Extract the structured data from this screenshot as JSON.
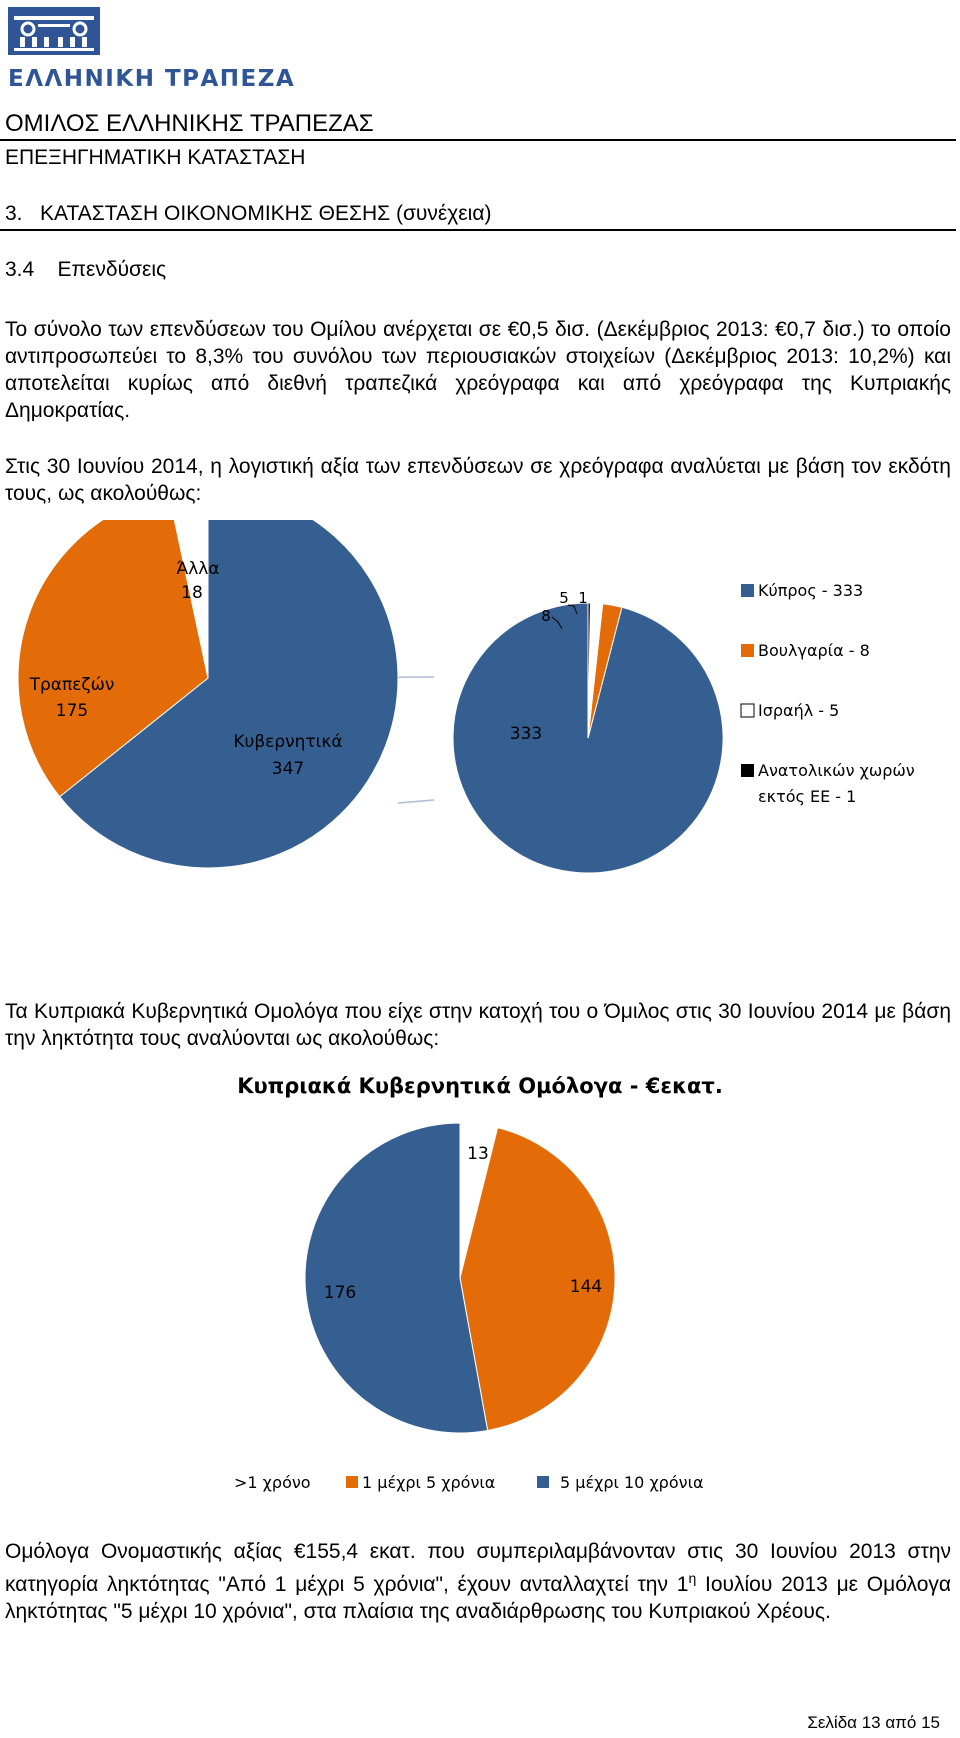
{
  "header": {
    "bank_name": "ΕΛΛΗΝΙΚΗ ΤΡΑΠΕΖΑ",
    "group_title": "ΟΜΙΛΟΣ ΕΛΛΗΝΙΚΗΣ ΤΡΑΠΕΖΑΣ",
    "report_title": "ΕΠΕΞΗΓΗΜΑΤΙΚΗ ΚΑΤΑΣΤΑΣΗ"
  },
  "section": {
    "title": "3.   ΚΑΤΑΣΤΑΣΗ ΟΙΚΟΝΟΜΙΚΗΣ ΘΕΣΗΣ (συνέχεια)",
    "subtitle": "3.4    Επενδύσεις"
  },
  "paragraphs": {
    "p1": "Το σύνολο των επενδύσεων του Ομίλου ανέρχεται σε €0,5 δισ. (Δεκέμβριος 2013: €0,7 δισ.) το οποίο αντιπροσωπεύει το 8,3% του συνόλου των περιουσιακών στοιχείων (Δεκέμβριος 2013: 10,2%) και αποτελείται κυρίως από διεθνή τραπεζικά χρεόγραφα και από χρεόγραφα της Κυπριακής Δημοκρατίας.",
    "p2": "Στις 30 Ιουνίου 2014, η λογιστική αξία των επενδύσεων σε χρεόγραφα αναλύεται με βάση τον εκδότη τους, ως ακολούθως:",
    "p3": "Τα Κυπριακά Κυβερνητικά Ομολόγα που είχε στην κατοχή του ο Όμιλος στις 30 Ιουνίου 2014 με βάση την ληκτότητα τους αναλύονται ως ακολούθως:",
    "p4_a": "Ομόλογα Ονομαστικής αξίας €155,4 εκατ. που συμπεριλαμβάνονταν στις 30 Ιουνίου 2013 στην κατηγορία ληκτότητας \"Από 1 μέχρι 5 χρόνια\", έχουν ανταλλαχτεί την 1",
    "p4_sup": "η",
    "p4_b": " Ιουλίου 2013 με  Ομόλογα ληκτότητας \"5 μέχρι 10 χρόνια\", στα πλαίσια της αναδιάρθρωσης του Κυπριακού Χρέους."
  },
  "chart_data": [
    {
      "type": "pie",
      "categories": [
        "Κυβερνητικά",
        "Τραπεζών",
        "Άλλα"
      ],
      "values": [
        347,
        175,
        18
      ],
      "colors": [
        "#365f91",
        "#e36c09",
        "#ffffff"
      ]
    },
    {
      "type": "pie",
      "categories": [
        "Κύπρος",
        "Βουλγαρία",
        "Ισραήλ",
        "Ανατολικών χωρών εκτός ΕΕ"
      ],
      "values": [
        333,
        8,
        5,
        1
      ],
      "colors": [
        "#365f91",
        "#e36c09",
        "#ffffff",
        "#000000"
      ],
      "legend": [
        [
          "Κύπρος - 333"
        ],
        [
          "Βουλγαρία  - 8"
        ],
        [
          "Ισραήλ - 5"
        ],
        [
          "Ανατολικών χωρών",
          "εκτός ΕΕ - 1"
        ]
      ],
      "legend_position": "right"
    },
    {
      "type": "pie",
      "title": "Κυπριακά Κυβερνητικά Ομόλογα - €εκατ.",
      "categories": [
        ">1 χρόνο",
        "1 μέχρι 5 χρόνια",
        "5 μέχρι 10 χρόνια"
      ],
      "values": [
        13,
        144,
        176
      ],
      "colors": [
        "#ffffff",
        "#e36c09",
        "#365f91"
      ],
      "legend_position": "bottom"
    }
  ],
  "footer": {
    "page": "Σελίδα 13 από 15"
  }
}
